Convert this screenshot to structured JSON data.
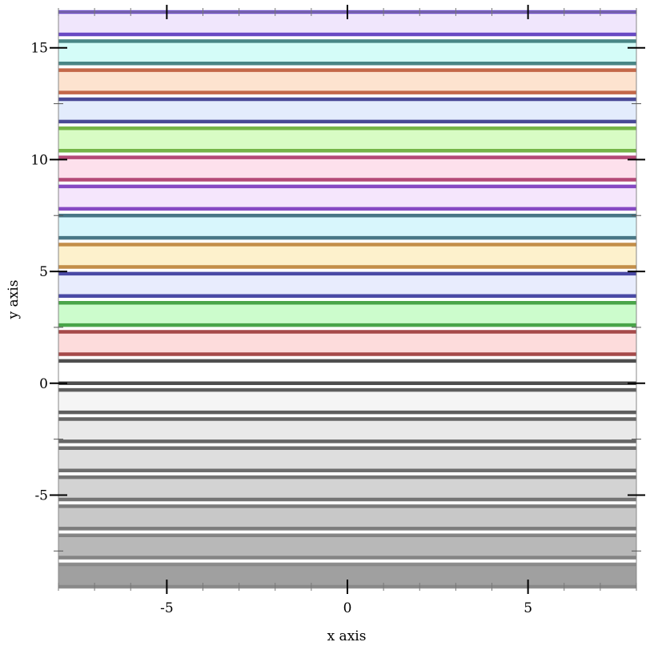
{
  "chart_data": {
    "type": "area",
    "xlabel": "x axis",
    "ylabel": "y axis",
    "xlim": [
      -8,
      8
    ],
    "ylim": [
      -9.1,
      16.6
    ],
    "x_ticks": [
      -5,
      0,
      5
    ],
    "y_ticks": [
      -5,
      0,
      5,
      10,
      15
    ],
    "x_tick_labels": [
      "-5",
      "0",
      "5"
    ],
    "y_tick_labels": [
      "-5",
      "0",
      "5",
      "10",
      "15"
    ],
    "grid": false,
    "series": [
      {
        "lower": -9.1,
        "upper": -8.1,
        "fill": "#a0a0a0",
        "line": "#888888"
      },
      {
        "lower": -7.8,
        "upper": -6.8,
        "fill": "#b8b8b8",
        "line": "#808080"
      },
      {
        "lower": -6.5,
        "upper": -5.5,
        "fill": "#c8c8c8",
        "line": "#777777"
      },
      {
        "lower": -5.2,
        "upper": -4.2,
        "fill": "#d3d3d3",
        "line": "#6e6e6e"
      },
      {
        "lower": -3.9,
        "upper": -2.9,
        "fill": "#dedede",
        "line": "#666666"
      },
      {
        "lower": -2.6,
        "upper": -1.6,
        "fill": "#e9e9e9",
        "line": "#5e5e5e"
      },
      {
        "lower": -1.3,
        "upper": -0.3,
        "fill": "#f5f5f5",
        "line": "#555555"
      },
      {
        "lower": 0,
        "upper": 1,
        "fill": "#ffffff",
        "line": "#444444"
      },
      {
        "lower": 1.3,
        "upper": 2.3,
        "fill": "#fddcdc",
        "line": "#a04040"
      },
      {
        "lower": 2.6,
        "upper": 3.6,
        "fill": "#ccfccc",
        "line": "#40a040"
      },
      {
        "lower": 3.9,
        "upper": 4.9,
        "fill": "#e8ecfd",
        "line": "#4040a0"
      },
      {
        "lower": 5.2,
        "upper": 6.2,
        "fill": "#fdf1cc",
        "line": "#c08840"
      },
      {
        "lower": 6.5,
        "upper": 7.5,
        "fill": "#d8f6fc",
        "line": "#407080"
      },
      {
        "lower": 7.8,
        "upper": 8.8,
        "fill": "#f5e6fc",
        "line": "#8040c0"
      },
      {
        "lower": 9.1,
        "upper": 10.1,
        "fill": "#fde0ec",
        "line": "#b04070"
      },
      {
        "lower": 10.4,
        "upper": 11.4,
        "fill": "#d8fcc4",
        "line": "#70b040"
      },
      {
        "lower": 11.7,
        "upper": 12.7,
        "fill": "#e3ecfc",
        "line": "#404090"
      },
      {
        "lower": 13.0,
        "upper": 14.0,
        "fill": "#fde3cf",
        "line": "#c06040"
      },
      {
        "lower": 14.3,
        "upper": 15.3,
        "fill": "#d4fcf8",
        "line": "#408080"
      },
      {
        "lower": 15.6,
        "upper": 16.6,
        "fill": "#f0e6fc",
        "line": "#6040c0"
      }
    ]
  }
}
